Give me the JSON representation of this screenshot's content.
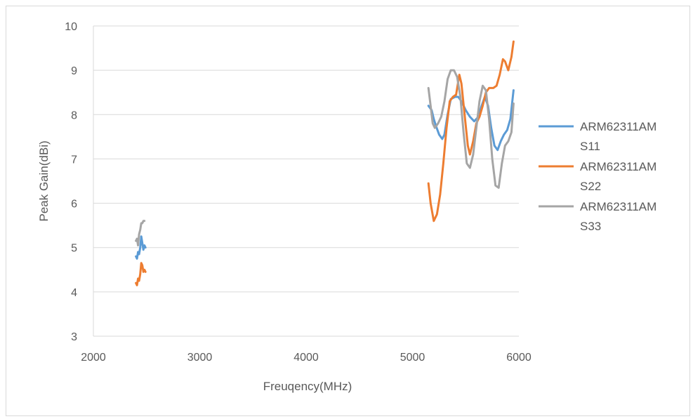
{
  "chart_data": {
    "type": "line",
    "title": "",
    "xlabel": "Freuqency(MHz)",
    "ylabel": "Peak Gain(dBi)",
    "xlim": [
      2000,
      6000
    ],
    "ylim": [
      3,
      10
    ],
    "xticks": [
      2000,
      3000,
      4000,
      5000,
      6000
    ],
    "yticks": [
      3,
      4,
      5,
      6,
      7,
      8,
      9,
      10
    ],
    "grid": "horizontal",
    "legend_position": "right",
    "series": [
      {
        "name_line1": "ARM62311AM",
        "name_line2": "S11",
        "color": "#5b9bd5",
        "segments": [
          [
            [
              2400,
              4.8
            ],
            [
              2410,
              4.75
            ],
            [
              2420,
              4.9
            ],
            [
              2430,
              4.85
            ],
            [
              2440,
              5.0
            ],
            [
              2450,
              5.25
            ],
            [
              2460,
              5.1
            ],
            [
              2470,
              4.95
            ],
            [
              2480,
              5.05
            ],
            [
              2490,
              5.0
            ]
          ],
          [
            [
              5150,
              8.2
            ],
            [
              5180,
              8.1
            ],
            [
              5200,
              7.9
            ],
            [
              5220,
              7.75
            ],
            [
              5250,
              7.55
            ],
            [
              5280,
              7.45
            ],
            [
              5300,
              7.55
            ],
            [
              5330,
              8.0
            ],
            [
              5360,
              8.35
            ],
            [
              5400,
              8.4
            ],
            [
              5430,
              8.4
            ],
            [
              5460,
              8.3
            ],
            [
              5500,
              8.1
            ],
            [
              5540,
              7.95
            ],
            [
              5580,
              7.85
            ],
            [
              5620,
              7.95
            ],
            [
              5650,
              8.2
            ],
            [
              5680,
              8.4
            ],
            [
              5710,
              8.2
            ],
            [
              5740,
              7.7
            ],
            [
              5770,
              7.3
            ],
            [
              5800,
              7.2
            ],
            [
              5830,
              7.4
            ],
            [
              5860,
              7.55
            ],
            [
              5890,
              7.65
            ],
            [
              5920,
              7.9
            ],
            [
              5950,
              8.55
            ]
          ]
        ]
      },
      {
        "name_line1": "ARM62311AM",
        "name_line2": "S22",
        "color": "#ed7d31",
        "segments": [
          [
            [
              2400,
              4.2
            ],
            [
              2410,
              4.15
            ],
            [
              2420,
              4.3
            ],
            [
              2430,
              4.25
            ],
            [
              2440,
              4.4
            ],
            [
              2450,
              4.65
            ],
            [
              2460,
              4.6
            ],
            [
              2470,
              4.45
            ],
            [
              2480,
              4.5
            ],
            [
              2490,
              4.45
            ]
          ],
          [
            [
              5150,
              6.45
            ],
            [
              5170,
              6.0
            ],
            [
              5200,
              5.6
            ],
            [
              5230,
              5.75
            ],
            [
              5260,
              6.2
            ],
            [
              5290,
              6.9
            ],
            [
              5320,
              7.7
            ],
            [
              5350,
              8.3
            ],
            [
              5380,
              8.4
            ],
            [
              5410,
              8.45
            ],
            [
              5440,
              8.9
            ],
            [
              5460,
              8.7
            ],
            [
              5490,
              8.0
            ],
            [
              5520,
              7.3
            ],
            [
              5540,
              7.1
            ],
            [
              5570,
              7.4
            ],
            [
              5600,
              7.8
            ],
            [
              5630,
              7.95
            ],
            [
              5660,
              8.2
            ],
            [
              5690,
              8.5
            ],
            [
              5720,
              8.6
            ],
            [
              5760,
              8.6
            ],
            [
              5790,
              8.65
            ],
            [
              5820,
              8.9
            ],
            [
              5850,
              9.25
            ],
            [
              5870,
              9.2
            ],
            [
              5900,
              9.0
            ],
            [
              5930,
              9.3
            ],
            [
              5950,
              9.65
            ]
          ]
        ]
      },
      {
        "name_line1": "ARM62311AM",
        "name_line2": "S33",
        "color": "#a5a5a5",
        "segments": [
          [
            [
              2400,
              5.15
            ],
            [
              2410,
              5.2
            ],
            [
              2420,
              5.05
            ],
            [
              2430,
              5.3
            ],
            [
              2440,
              5.4
            ],
            [
              2450,
              5.55
            ],
            [
              2460,
              5.55
            ],
            [
              2470,
              5.6
            ],
            [
              2480,
              5.6
            ]
          ],
          [
            [
              5150,
              8.6
            ],
            [
              5170,
              8.2
            ],
            [
              5190,
              7.8
            ],
            [
              5210,
              7.7
            ],
            [
              5240,
              7.8
            ],
            [
              5270,
              7.95
            ],
            [
              5300,
              8.3
            ],
            [
              5330,
              8.8
            ],
            [
              5360,
              9.0
            ],
            [
              5390,
              9.0
            ],
            [
              5420,
              8.85
            ],
            [
              5450,
              8.4
            ],
            [
              5480,
              7.6
            ],
            [
              5510,
              6.9
            ],
            [
              5540,
              6.8
            ],
            [
              5570,
              7.1
            ],
            [
              5600,
              7.7
            ],
            [
              5630,
              8.3
            ],
            [
              5660,
              8.65
            ],
            [
              5690,
              8.55
            ],
            [
              5720,
              7.9
            ],
            [
              5750,
              7.0
            ],
            [
              5780,
              6.4
            ],
            [
              5810,
              6.35
            ],
            [
              5840,
              6.9
            ],
            [
              5870,
              7.3
            ],
            [
              5900,
              7.4
            ],
            [
              5930,
              7.6
            ],
            [
              5950,
              8.25
            ]
          ]
        ]
      }
    ]
  }
}
